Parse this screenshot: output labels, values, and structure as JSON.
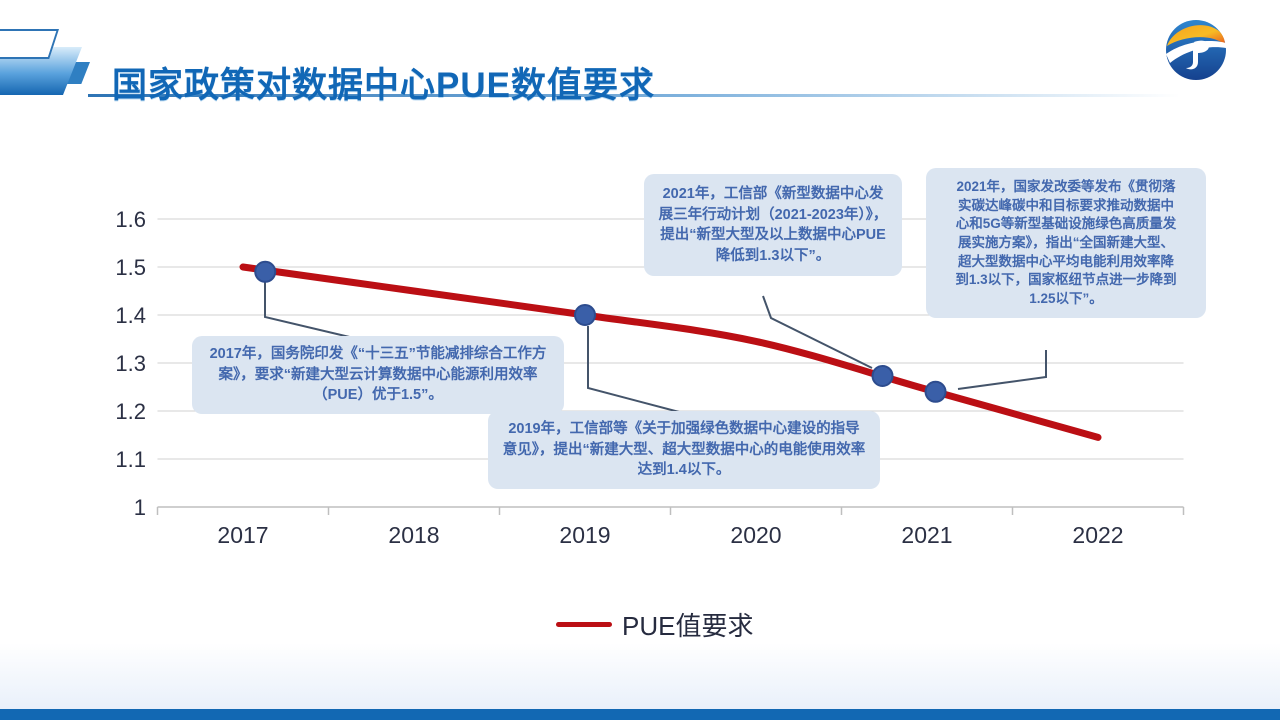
{
  "slide": {
    "title": "国家政策对数据中心PUE数值要求"
  },
  "logo": {
    "name": "jp-company-logo"
  },
  "colors": {
    "title_blue": "#1167b6",
    "header_rule_blue": "#2e74b5",
    "callout_bg": "#dbe5f1",
    "callout_text": "#4368ae",
    "connector": "#44546a",
    "pue_line_red": "#bb0f14",
    "marker_fill": "#3a5fa8",
    "marker_edge": "#2d4c8e",
    "gridline": "#d9d9d9",
    "axis_line": "#bfbfbf",
    "axis_text": "#2b3044",
    "footer_bar_blue": "#1268b3"
  },
  "callouts": [
    {
      "id": "2017",
      "text": "2017年，国务院印发《“十三五”节能减排综合工作方案》，要求“新建大型云计算数据中心能源利用效率（PUE）优于1.5”。"
    },
    {
      "id": "2019",
      "text": "2019年，工信部等《关于加强绿色数据中心建设的指导意见》，提出“新建大型、超大型数据中心的电能使用效率达到1.4以下。"
    },
    {
      "id": "2021a",
      "text": "2021年，工信部《新型数据中心发展三年行动计划（2021-2023年）》，提出“新型大型及以上数据中心PUE降低到1.3以下”。"
    },
    {
      "id": "2021b",
      "text": "2021年，国家发改委等发布《贯彻落实碳达峰碳中和目标要求推动数据中心和5G等新型基础设施绿色高质量发展实施方案》，指出“全国新建大型、超大型数据中心平均电能利用效率降到1.3以下，国家枢纽节点进一步降到1.25以下”。"
    }
  ],
  "chart_data": {
    "type": "line",
    "title": "",
    "xlabel": "",
    "ylabel": "",
    "categories": [
      "2017",
      "2018",
      "2019",
      "2020",
      "2021",
      "2022"
    ],
    "ylim": [
      1,
      1.6
    ],
    "grid": true,
    "yticks": [
      {
        "value": 1.6,
        "label": "1.6"
      },
      {
        "value": 1.5,
        "label": "1.5"
      },
      {
        "value": 1.4,
        "label": "1.4"
      },
      {
        "value": 1.3,
        "label": "1.3"
      },
      {
        "value": 1.2,
        "label": "1.2"
      },
      {
        "value": 1.1,
        "label": "1.1"
      },
      {
        "value": 1.0,
        "label": "1"
      }
    ],
    "series": [
      {
        "name": "PUE值要求",
        "points": [
          [
            2017,
            1.5
          ],
          [
            2018,
            1.45
          ],
          [
            2019,
            1.4
          ],
          [
            2020,
            1.345
          ],
          [
            2021,
            1.245
          ],
          [
            2022,
            1.145
          ]
        ]
      }
    ],
    "markers": [
      {
        "x": 2017.13,
        "value": 1.49
      },
      {
        "x": 2019.0,
        "value": 1.4
      },
      {
        "x": 2020.74,
        "value": 1.273
      },
      {
        "x": 2021.05,
        "value": 1.24
      }
    ],
    "legend": {
      "label": "PUE值要求",
      "position": "bottom"
    }
  }
}
